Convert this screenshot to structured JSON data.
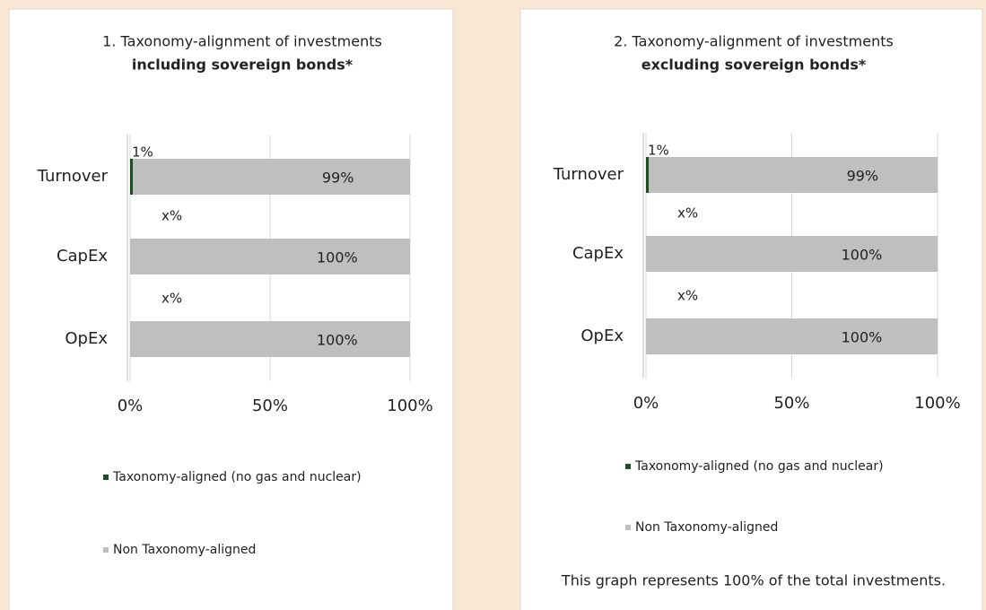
{
  "chart_data": [
    {
      "type": "stacked_bar_horizontal",
      "title": "1. Taxonomy-alignment of investments",
      "subtitle": "including sovereign bonds*",
      "categories": [
        "Turnover",
        "CapEx",
        "OpEx"
      ],
      "series": [
        {
          "name": "Taxonomy-aligned (no gas and nuclear)",
          "color": "#1f4e1f",
          "values": [
            1,
            0,
            0
          ],
          "value_labels": [
            "1%",
            "x%",
            "x%"
          ]
        },
        {
          "name": "Non Taxonomy-aligned",
          "color": "#bfbfbf",
          "values": [
            99,
            100,
            100
          ],
          "value_labels": [
            "99%",
            "100%",
            "100%"
          ]
        }
      ],
      "xlim": [
        0,
        100
      ],
      "xticks": [
        {
          "value": 0,
          "label": "0%"
        },
        {
          "value": 50,
          "label": "50%"
        },
        {
          "value": 100,
          "label": "100%"
        }
      ],
      "grid": true,
      "legend": "bottom"
    },
    {
      "type": "stacked_bar_horizontal",
      "title": "2. Taxonomy-alignment of investments",
      "subtitle": "excluding sovereign bonds*",
      "categories": [
        "Turnover",
        "CapEx",
        "OpEx"
      ],
      "series": [
        {
          "name": "Taxonomy-aligned (no gas and nuclear)",
          "color": "#1f4e1f",
          "values": [
            1,
            0,
            0
          ],
          "value_labels": [
            "1%",
            "x%",
            "x%"
          ]
        },
        {
          "name": "Non Taxonomy-aligned",
          "color": "#bfbfbf",
          "values": [
            99,
            100,
            100
          ],
          "value_labels": [
            "99%",
            "100%",
            "100%"
          ]
        }
      ],
      "xlim": [
        0,
        100
      ],
      "xticks": [
        {
          "value": 0,
          "label": "0%"
        },
        {
          "value": 50,
          "label": "50%"
        },
        {
          "value": 100,
          "label": "100%"
        }
      ],
      "grid": true,
      "legend": "bottom",
      "note": "This graph represents 100% of the total investments."
    }
  ]
}
